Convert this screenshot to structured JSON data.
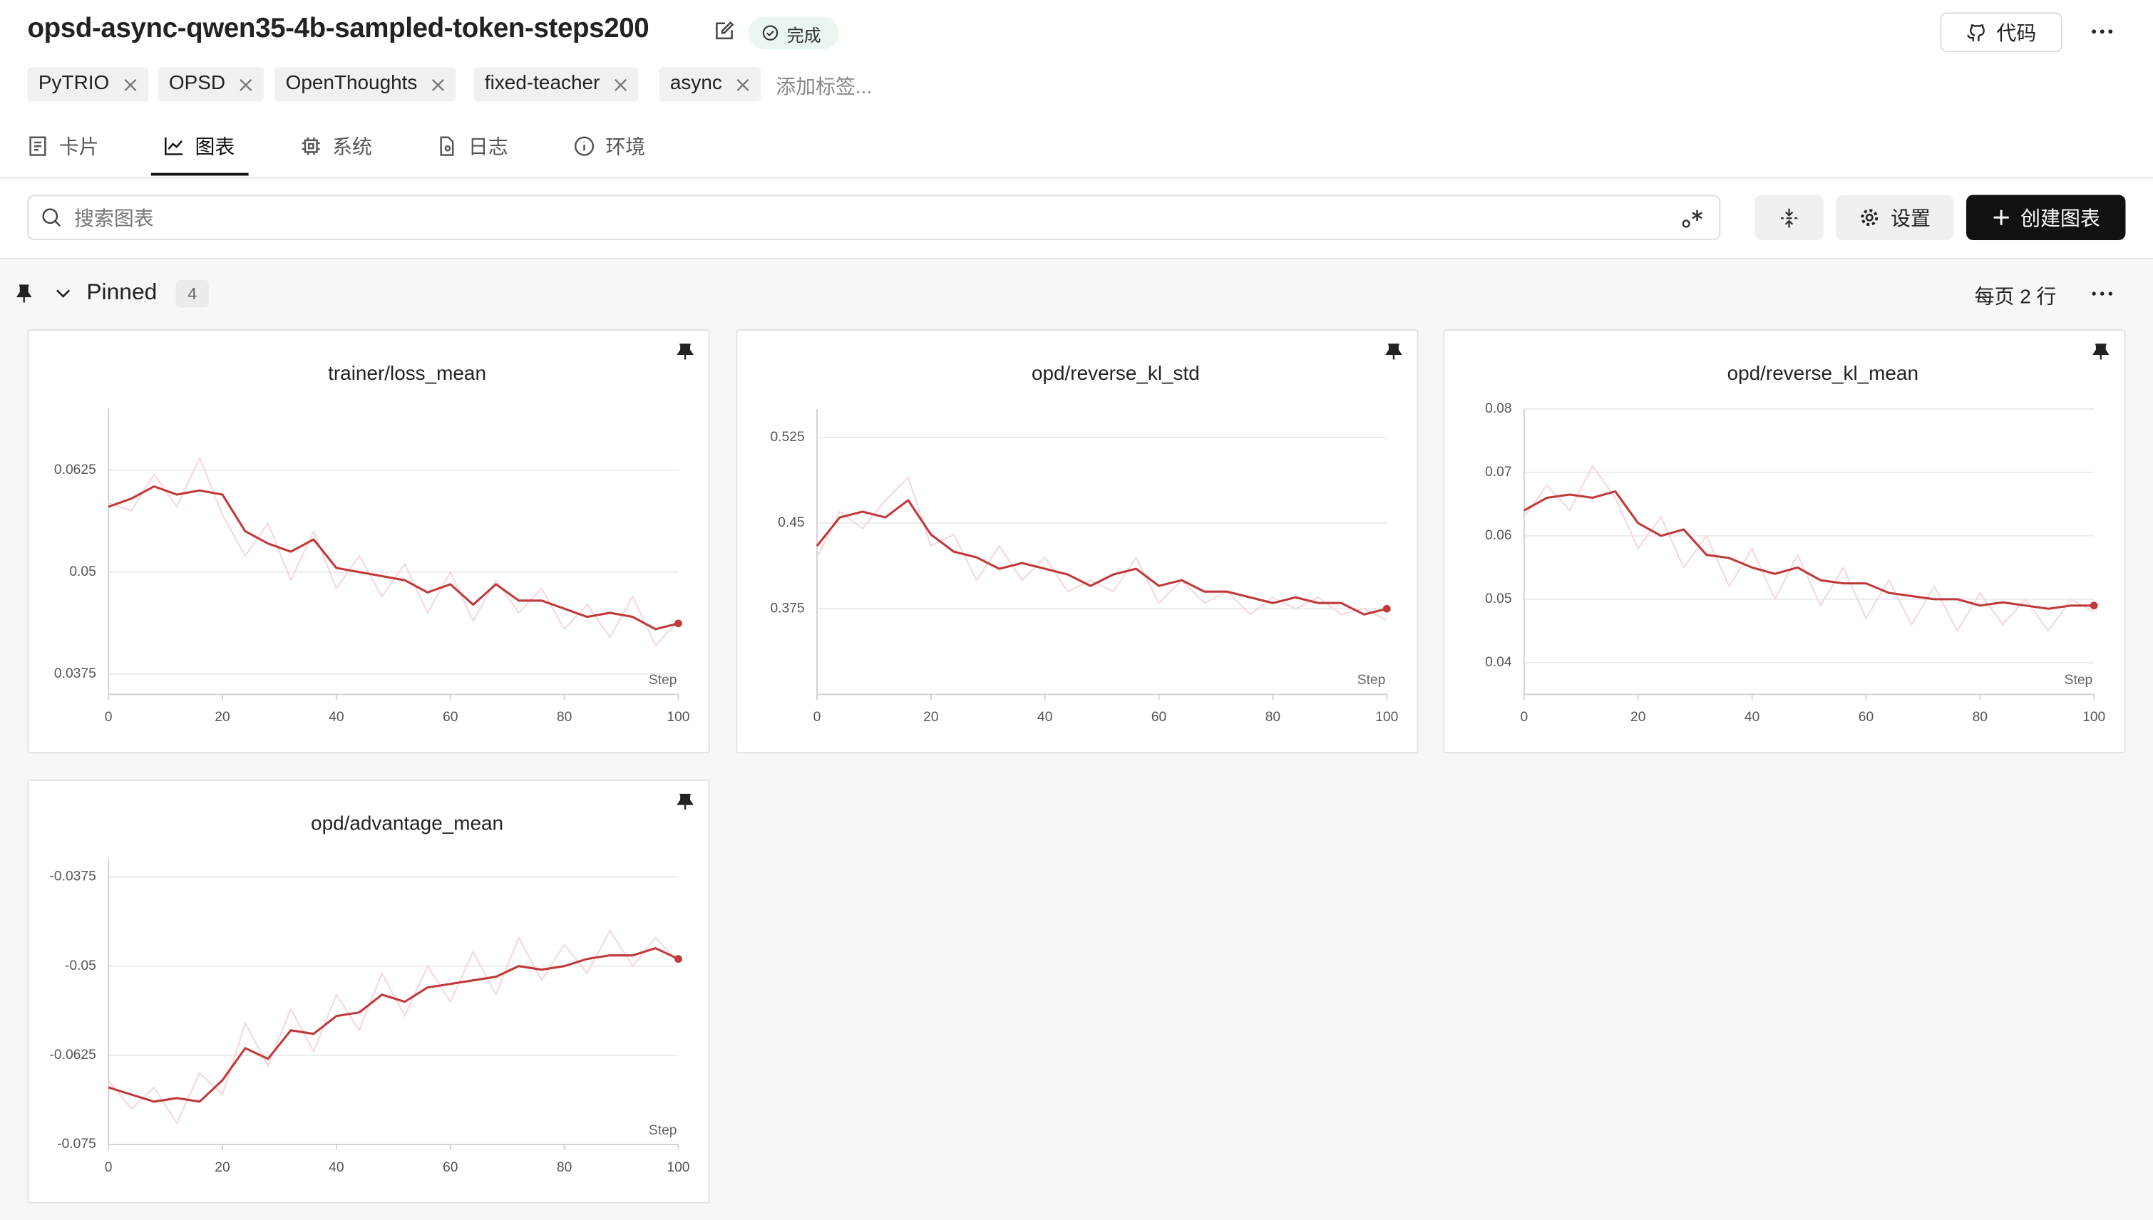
{
  "header": {
    "title": "opsd-async-qwen35-4b-sampled-token-steps200",
    "status": "完成",
    "code_button": "代码"
  },
  "tags": [
    "PyTRIO",
    "OPSD",
    "OpenThoughts",
    "fixed-teacher",
    "async"
  ],
  "add_tag": "添加标签...",
  "tabs": [
    "卡片",
    "图表",
    "系统",
    "日志",
    "环境"
  ],
  "active_tab": 1,
  "toolbar": {
    "search_placeholder": "搜索图表",
    "settings_button": "设置",
    "create_button": "创建图表"
  },
  "section": {
    "name": "Pinned",
    "count": 4,
    "per_page": "每页 2 行"
  },
  "chart_data": [
    {
      "type": "line",
      "title": "trainer/loss_mean",
      "xlabel": "Step",
      "x": [
        0,
        4,
        8,
        12,
        16,
        20,
        24,
        28,
        32,
        36,
        40,
        44,
        48,
        52,
        56,
        60,
        64,
        68,
        72,
        76,
        80,
        84,
        88,
        92,
        96,
        100
      ],
      "xlim": [
        0,
        100
      ],
      "xticks": [
        0,
        20,
        40,
        60,
        80,
        100
      ],
      "ylim": [
        0.035,
        0.07
      ],
      "yticks": [
        0.0375,
        0.05,
        0.0625
      ],
      "grid": true,
      "series": [
        {
          "color": "#f5d9db",
          "values": [
            0.0585,
            0.0575,
            0.062,
            0.058,
            0.064,
            0.057,
            0.052,
            0.056,
            0.049,
            0.055,
            0.048,
            0.052,
            0.047,
            0.051,
            0.045,
            0.05,
            0.044,
            0.049,
            0.045,
            0.048,
            0.043,
            0.046,
            0.042,
            0.047,
            0.041,
            0.044
          ]
        },
        {
          "color": "#c0393b",
          "values": [
            0.058,
            0.059,
            0.0605,
            0.0595,
            0.06,
            0.0595,
            0.055,
            0.0535,
            0.0525,
            0.054,
            0.0505,
            0.05,
            0.0495,
            0.049,
            0.0475,
            0.0485,
            0.046,
            0.0485,
            0.0465,
            0.0465,
            0.0455,
            0.0445,
            0.045,
            0.0445,
            0.043,
            0.0437
          ]
        }
      ]
    },
    {
      "type": "line",
      "title": "opd/reverse_kl_std",
      "xlabel": "Step",
      "x": [
        0,
        4,
        8,
        12,
        16,
        20,
        24,
        28,
        32,
        36,
        40,
        44,
        48,
        52,
        56,
        60,
        64,
        68,
        72,
        76,
        80,
        84,
        88,
        92,
        96,
        100
      ],
      "xlim": [
        0,
        100
      ],
      "xticks": [
        0,
        20,
        40,
        60,
        80,
        100
      ],
      "ylim": [
        0.3,
        0.55
      ],
      "yticks": [
        0.375,
        0.45,
        0.525
      ],
      "grid": true,
      "series": [
        {
          "color": "#f5d9db",
          "values": [
            0.42,
            0.46,
            0.445,
            0.47,
            0.49,
            0.43,
            0.44,
            0.4,
            0.43,
            0.4,
            0.42,
            0.39,
            0.4,
            0.39,
            0.42,
            0.38,
            0.4,
            0.38,
            0.39,
            0.37,
            0.385,
            0.375,
            0.385,
            0.37,
            0.375,
            0.365
          ]
        },
        {
          "color": "#c0393b",
          "values": [
            0.43,
            0.455,
            0.46,
            0.455,
            0.47,
            0.44,
            0.425,
            0.42,
            0.41,
            0.415,
            0.41,
            0.405,
            0.395,
            0.405,
            0.41,
            0.395,
            0.4,
            0.39,
            0.39,
            0.385,
            0.38,
            0.385,
            0.38,
            0.38,
            0.37,
            0.375
          ]
        }
      ]
    },
    {
      "type": "line",
      "title": "opd/reverse_kl_mean",
      "xlabel": "Step",
      "x": [
        0,
        4,
        8,
        12,
        16,
        20,
        24,
        28,
        32,
        36,
        40,
        44,
        48,
        52,
        56,
        60,
        64,
        68,
        72,
        76,
        80,
        84,
        88,
        92,
        96,
        100
      ],
      "xlim": [
        0,
        100
      ],
      "xticks": [
        0,
        20,
        40,
        60,
        80,
        100
      ],
      "ylim": [
        0.035,
        0.08
      ],
      "yticks": [
        0.04,
        0.05,
        0.06,
        0.07,
        0.08
      ],
      "grid": true,
      "series": [
        {
          "color": "#f5d9db",
          "values": [
            0.063,
            0.068,
            0.064,
            0.071,
            0.066,
            0.058,
            0.063,
            0.055,
            0.06,
            0.052,
            0.058,
            0.05,
            0.057,
            0.049,
            0.055,
            0.047,
            0.053,
            0.046,
            0.052,
            0.045,
            0.051,
            0.046,
            0.05,
            0.045,
            0.05,
            0.048
          ]
        },
        {
          "color": "#c0393b",
          "values": [
            0.064,
            0.066,
            0.0665,
            0.066,
            0.067,
            0.062,
            0.06,
            0.061,
            0.057,
            0.0565,
            0.055,
            0.054,
            0.055,
            0.053,
            0.0525,
            0.0525,
            0.051,
            0.0505,
            0.05,
            0.05,
            0.049,
            0.0495,
            0.049,
            0.0485,
            0.049,
            0.049
          ]
        }
      ]
    },
    {
      "type": "line",
      "title": "opd/advantage_mean",
      "xlabel": "Step",
      "x": [
        0,
        4,
        8,
        12,
        16,
        20,
        24,
        28,
        32,
        36,
        40,
        44,
        48,
        52,
        56,
        60,
        64,
        68,
        72,
        76,
        80,
        84,
        88,
        92,
        96,
        100
      ],
      "xlim": [
        0,
        100
      ],
      "xticks": [
        0,
        20,
        40,
        60,
        80,
        100
      ],
      "ylim": [
        -0.075,
        -0.035
      ],
      "yticks": [
        -0.0375,
        -0.05,
        -0.0625,
        -0.075
      ],
      "grid": true,
      "series": [
        {
          "color": "#f5d9db",
          "values": [
            -0.066,
            -0.07,
            -0.067,
            -0.072,
            -0.065,
            -0.068,
            -0.058,
            -0.064,
            -0.056,
            -0.062,
            -0.054,
            -0.059,
            -0.051,
            -0.057,
            -0.05,
            -0.055,
            -0.048,
            -0.054,
            -0.046,
            -0.052,
            -0.047,
            -0.051,
            -0.045,
            -0.05,
            -0.046,
            -0.0495
          ]
        },
        {
          "color": "#c0393b",
          "values": [
            -0.067,
            -0.068,
            -0.069,
            -0.0685,
            -0.069,
            -0.066,
            -0.0615,
            -0.063,
            -0.059,
            -0.0595,
            -0.057,
            -0.0565,
            -0.054,
            -0.055,
            -0.053,
            -0.0525,
            -0.052,
            -0.0515,
            -0.05,
            -0.0505,
            -0.05,
            -0.049,
            -0.0485,
            -0.0485,
            -0.0475,
            -0.049
          ]
        }
      ]
    }
  ]
}
